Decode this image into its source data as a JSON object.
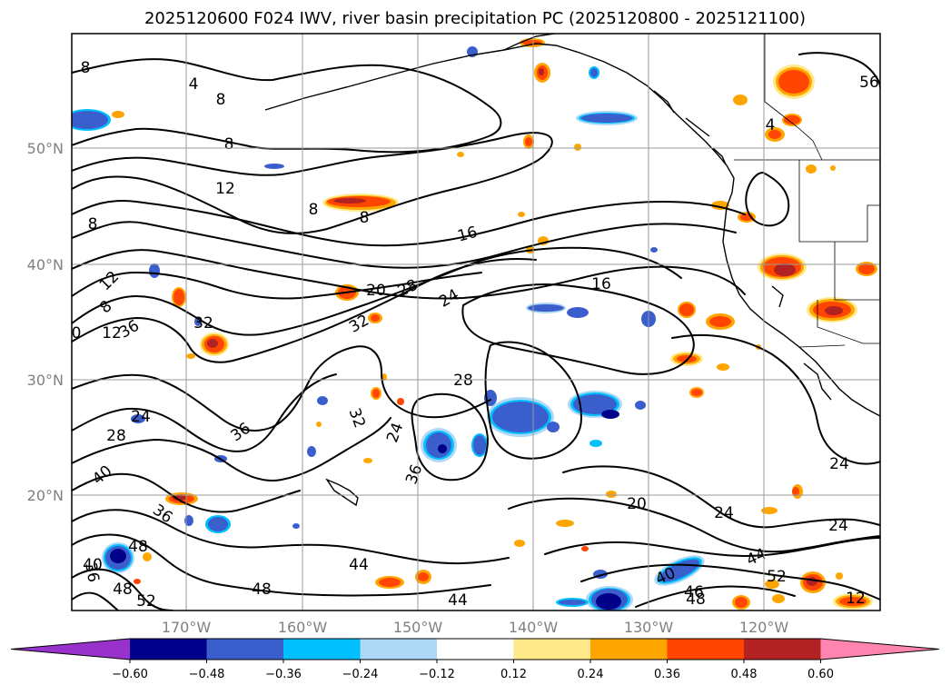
{
  "title": "2025120600 F024 IWV, river basin precipitation PC (2025120800 - 2025121100)",
  "lat_labels": [
    "50°N",
    "40°N",
    "30°N",
    "20°N"
  ],
  "lon_labels": [
    "170°W",
    "160°W",
    "150°W",
    "140°W",
    "130°W",
    "120°W"
  ],
  "colorbar": {
    "ticks": [
      "−0.60",
      "−0.48",
      "−0.36",
      "−0.24",
      "−0.12",
      "0.12",
      "0.24",
      "0.36",
      "0.48",
      "0.60"
    ],
    "colors": [
      "#9932cc",
      "#00008b",
      "#3a5fcd",
      "#00bfff",
      "#add8f6",
      "#ffffff",
      "#ffe98a",
      "#ffa500",
      "#ff4500",
      "#b22222",
      "#ff85b0"
    ]
  },
  "contour_labels": [
    "8",
    "4",
    "8",
    "8",
    "12",
    "8",
    "8",
    "16",
    "8",
    "12",
    "8",
    "12",
    "32",
    "20",
    "28",
    "24",
    "16",
    "36",
    "32",
    "0",
    "36",
    "28",
    "32",
    "24",
    "24",
    "28",
    "36",
    "24",
    "40",
    "36",
    "48",
    "40",
    "36",
    "44",
    "48",
    "48",
    "52",
    "44",
    "20",
    "24",
    "24",
    "44",
    "40",
    "46",
    "48",
    "52",
    "12",
    "56",
    "4",
    "8"
  ]
}
